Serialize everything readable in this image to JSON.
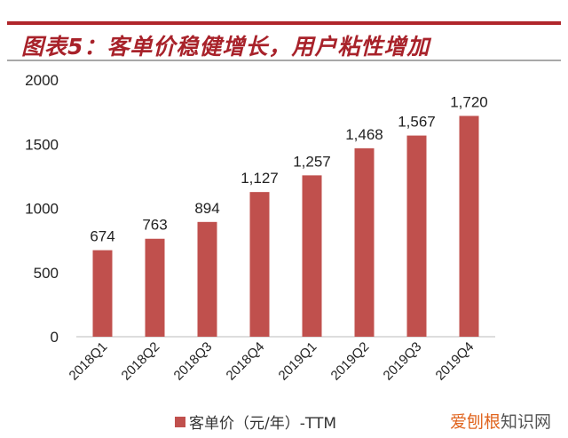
{
  "title": "图表5：客单价稳健增长，用户粘性增加",
  "chart_data": {
    "type": "bar",
    "title": "图表5：客单价稳健增长，用户粘性增加",
    "categories": [
      "2018Q1",
      "2018Q2",
      "2018Q3",
      "2018Q4",
      "2019Q1",
      "2019Q2",
      "2019Q3",
      "2019Q4"
    ],
    "series": [
      {
        "name": "客单价（元/年）-TTM",
        "values": [
          674,
          763,
          894,
          1127,
          1257,
          1468,
          1567,
          1720
        ],
        "color": "#c0504d"
      }
    ],
    "data_labels": [
      "674",
      "763",
      "894",
      "1,127",
      "1,257",
      "1,468",
      "1,567",
      "1,720"
    ],
    "ylim": [
      0,
      2000
    ],
    "yticks": [
      0,
      500,
      1000,
      1500,
      2000
    ],
    "grid": false,
    "legend": "bottom"
  },
  "watermark": {
    "accent": "爱刨根",
    "rest": "知识网"
  }
}
